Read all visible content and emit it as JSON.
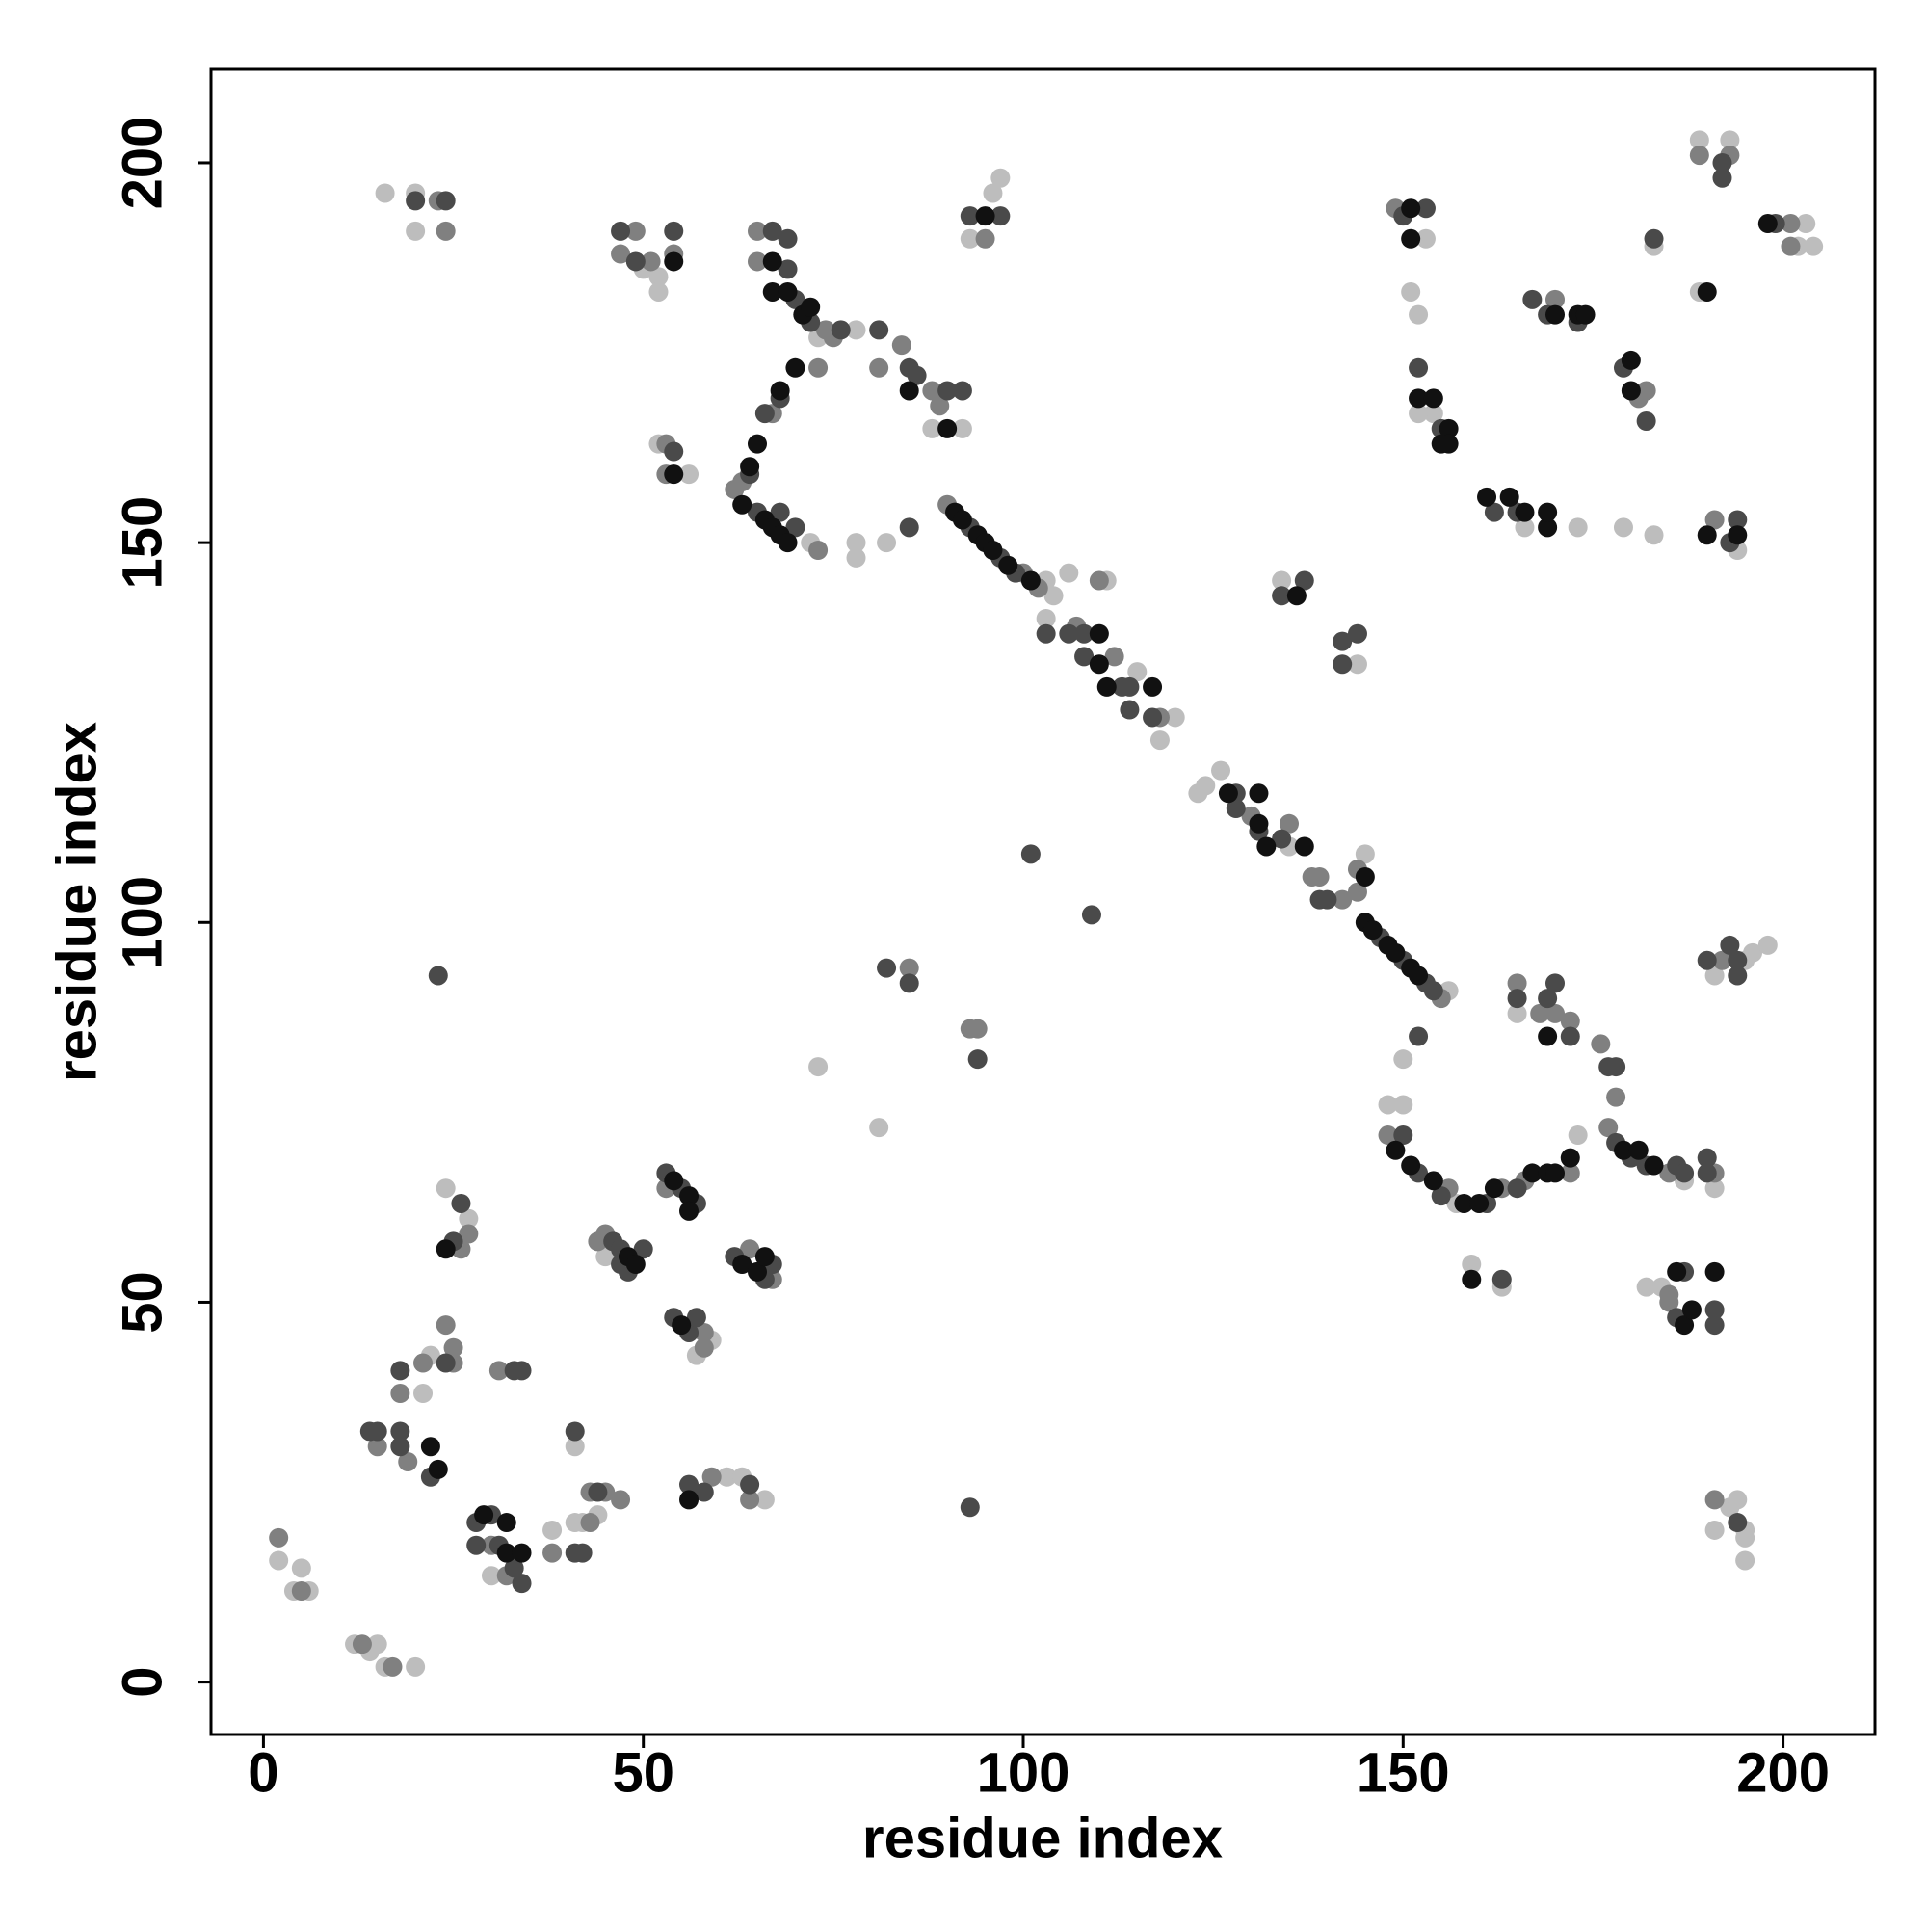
{
  "chart_data": {
    "type": "scatter",
    "x_label": "residue index",
    "y_label": "residue index",
    "xlim": [
      -6.9,
      212.1
    ],
    "ylim": [
      -6.9,
      212.3
    ],
    "xticks": [
      0,
      50,
      100,
      150,
      200
    ],
    "yticks": [
      0,
      50,
      100,
      150,
      200
    ],
    "series": [
      {
        "color": "#bdbdbd",
        "x": [
          2,
          4,
          5,
          6,
          12,
          14,
          15,
          16,
          20,
          22,
          21,
          27,
          24,
          30,
          38,
          41,
          42,
          41,
          44,
          45,
          59,
          57,
          61,
          63,
          66,
          73,
          81,
          16,
          20,
          20,
          50,
          52,
          52,
          52,
          56,
          73,
          72,
          78,
          78,
          82,
          78,
          88,
          92,
          93,
          96,
          97,
          103,
          104,
          103,
          106,
          111,
          115,
          118,
          120,
          123,
          124,
          126,
          135,
          145,
          156,
          134,
          144,
          153,
          151,
          152,
          154,
          152,
          166,
          173,
          183,
          179,
          183,
          189,
          189,
          193,
          194,
          202,
          203,
          204,
          150,
          148,
          150,
          157,
          173,
          165,
          187,
          191,
          159,
          163,
          182,
          184,
          191,
          195,
          196,
          198,
          191,
          193,
          194,
          195,
          195,
          195
        ],
        "values": [
          16,
          12,
          15,
          12,
          5,
          4,
          5,
          2,
          2,
          43,
          38,
          61,
          65,
          14,
          20,
          21,
          21,
          31,
          22,
          56,
          45,
          43,
          27,
          27,
          24,
          81,
          73,
          196,
          196,
          191,
          186,
          185,
          183,
          163,
          159,
          177,
          150,
          150,
          148,
          150,
          178,
          165,
          165,
          190,
          196,
          198,
          145,
          143,
          140,
          146,
          145,
          133,
          124,
          127,
          117,
          118,
          120,
          110,
          109,
          91,
          145,
          134,
          190,
          183,
          180,
          167,
          167,
          152,
          152,
          189,
          152,
          151,
          203,
          183,
          203,
          149,
          189,
          192,
          189,
          82,
          76,
          76,
          63,
          72,
          88,
          66,
          65,
          55,
          52,
          52,
          52,
          93,
          95,
          96,
          97,
          20,
          23,
          24,
          20,
          19,
          16
        ]
      },
      {
        "color": "#808080",
        "x": [
          2,
          5,
          13,
          17,
          15,
          19,
          18,
          21,
          27,
          26,
          24,
          25,
          25,
          30,
          32,
          31,
          38,
          43,
          43,
          45,
          47,
          44,
          45,
          53,
          58,
          58,
          59,
          64,
          64,
          67,
          85,
          93,
          94,
          23,
          24,
          47,
          49,
          51,
          54,
          53,
          53,
          65,
          65,
          74,
          75,
          73,
          67,
          63,
          62,
          73,
          81,
          84,
          88,
          89,
          95,
          90,
          100,
          102,
          107,
          110,
          112,
          118,
          130,
          135,
          138,
          139,
          142,
          144,
          144,
          155,
          149,
          181,
          182,
          170,
          189,
          191,
          193,
          201,
          201,
          148,
          156,
          163,
          166,
          172,
          170,
          168,
          165,
          172,
          176,
          178,
          177,
          185,
          191,
          185,
          185,
          192,
          191
        ],
        "values": [
          19,
          12,
          5,
          2,
          31,
          29,
          38,
          42,
          59,
          57,
          47,
          44,
          42,
          18,
          14,
          41,
          17,
          21,
          25,
          25,
          24,
          58,
          59,
          65,
          46,
          44,
          27,
          24,
          57,
          53,
          94,
          86,
          86,
          195,
          191,
          188,
          191,
          187,
          188,
          159,
          163,
          191,
          187,
          178,
          177,
          173,
          167,
          158,
          157,
          149,
          173,
          176,
          170,
          168,
          190,
          155,
          146,
          144,
          139,
          145,
          135,
          127,
          114,
          113,
          106,
          106,
          103,
          107,
          104,
          90,
          194,
          169,
          170,
          182,
          201,
          153,
          201,
          192,
          189,
          72,
          65,
          65,
          66,
          67,
          88,
          88,
          92,
          87,
          84,
          77,
          73,
          67,
          67,
          50,
          51,
          95,
          24
        ]
      },
      {
        "color": "#4a4a4a",
        "x": [
          14,
          15,
          18,
          18,
          18,
          22,
          25,
          26,
          24,
          28,
          30,
          28,
          31,
          33,
          34,
          33,
          34,
          41,
          42,
          41,
          44,
          46,
          47,
          47,
          48,
          50,
          53,
          55,
          57,
          54,
          56,
          57,
          56,
          58,
          64,
          62,
          67,
          66,
          23,
          93,
          82,
          85,
          94,
          101,
          109,
          20,
          24,
          47,
          49,
          54,
          54,
          67,
          69,
          69,
          70,
          72,
          76,
          68,
          66,
          64,
          65,
          68,
          70,
          85,
          81,
          85,
          86,
          90,
          92,
          93,
          97,
          93,
          97,
          99,
          103,
          108,
          106,
          108,
          113,
          114,
          114,
          117,
          128,
          128,
          131,
          134,
          139,
          140,
          147,
          150,
          153,
          154,
          134,
          137,
          142,
          142,
          144,
          150,
          153,
          152,
          155,
          162,
          165,
          167,
          169,
          173,
          179,
          182,
          183,
          192,
          192,
          193,
          194,
          199,
          152,
          150,
          152,
          155,
          161,
          165,
          172,
          169,
          170,
          165,
          177,
          178,
          178,
          180,
          182,
          186,
          187,
          190,
          190,
          163,
          187,
          186,
          191,
          191,
          190,
          193,
          194,
          194,
          194
        ],
        "values": [
          33,
          33,
          33,
          31,
          41,
          27,
          58,
          63,
          42,
          21,
          22,
          18,
          18,
          15,
          13,
          41,
          41,
          17,
          17,
          33,
          25,
          58,
          57,
          55,
          54,
          57,
          67,
          65,
          63,
          48,
          46,
          48,
          26,
          25,
          26,
          56,
          55,
          53,
          93,
          23,
          94,
          92,
          82,
          109,
          101,
          195,
          195,
          191,
          187,
          191,
          162,
          191,
          190,
          186,
          182,
          179,
          178,
          169,
          167,
          159,
          154,
          154,
          152,
          152,
          178,
          173,
          172,
          170,
          170,
          193,
          193,
          152,
          148,
          146,
          138,
          138,
          138,
          135,
          131,
          131,
          128,
          127,
          117,
          115,
          112,
          111,
          103,
          103,
          98,
          95,
          92,
          91,
          143,
          145,
          137,
          134,
          138,
          193,
          194,
          173,
          165,
          154,
          154,
          182,
          180,
          179,
          173,
          166,
          190,
          200,
          198,
          150,
          153,
          192,
          85,
          72,
          67,
          64,
          63,
          65,
          85,
          90,
          92,
          90,
          81,
          81,
          71,
          69,
          68,
          68,
          67,
          67,
          69,
          53,
          54,
          48,
          49,
          47,
          95,
          97,
          95,
          93,
          21
        ]
      },
      {
        "color": "#111111",
        "x": [
          22,
          23,
          24,
          29,
          32,
          32,
          34,
          48,
          49,
          54,
          56,
          56,
          55,
          56,
          63,
          65,
          66,
          54,
          54,
          67,
          67,
          69,
          71,
          72,
          70,
          68,
          65,
          64,
          63,
          66,
          67,
          68,
          69,
          85,
          90,
          95,
          91,
          92,
          94,
          95,
          96,
          98,
          101,
          110,
          110,
          111,
          117,
          127,
          131,
          131,
          132,
          137,
          145,
          145,
          146,
          148,
          149,
          151,
          152,
          136,
          151,
          151,
          152,
          154,
          155,
          156,
          156,
          161,
          164,
          166,
          169,
          169,
          170,
          173,
          174,
          180,
          180,
          190,
          190,
          194,
          198,
          149,
          151,
          154,
          158,
          160,
          162,
          167,
          169,
          170,
          172,
          169,
          179,
          181,
          183,
          159,
          186,
          187,
          188,
          191
        ],
        "values": [
          31,
          28,
          57,
          22,
          21,
          17,
          17,
          56,
          55,
          66,
          64,
          62,
          47,
          24,
          55,
          54,
          56,
          187,
          159,
          187,
          183,
          183,
          180,
          181,
          173,
          170,
          163,
          160,
          155,
          153,
          152,
          151,
          150,
          170,
          165,
          193,
          154,
          153,
          151,
          150,
          149,
          147,
          145,
          138,
          134,
          131,
          131,
          117,
          117,
          113,
          110,
          110,
          106,
          100,
          99,
          97,
          96,
          94,
          93,
          143,
          194,
          190,
          169,
          169,
          163,
          165,
          163,
          156,
          156,
          154,
          152,
          154,
          180,
          180,
          180,
          174,
          170,
          183,
          151,
          151,
          192,
          70,
          68,
          66,
          63,
          63,
          65,
          67,
          67,
          67,
          69,
          85,
          70,
          70,
          68,
          53,
          54,
          47,
          49,
          54
        ]
      }
    ]
  }
}
